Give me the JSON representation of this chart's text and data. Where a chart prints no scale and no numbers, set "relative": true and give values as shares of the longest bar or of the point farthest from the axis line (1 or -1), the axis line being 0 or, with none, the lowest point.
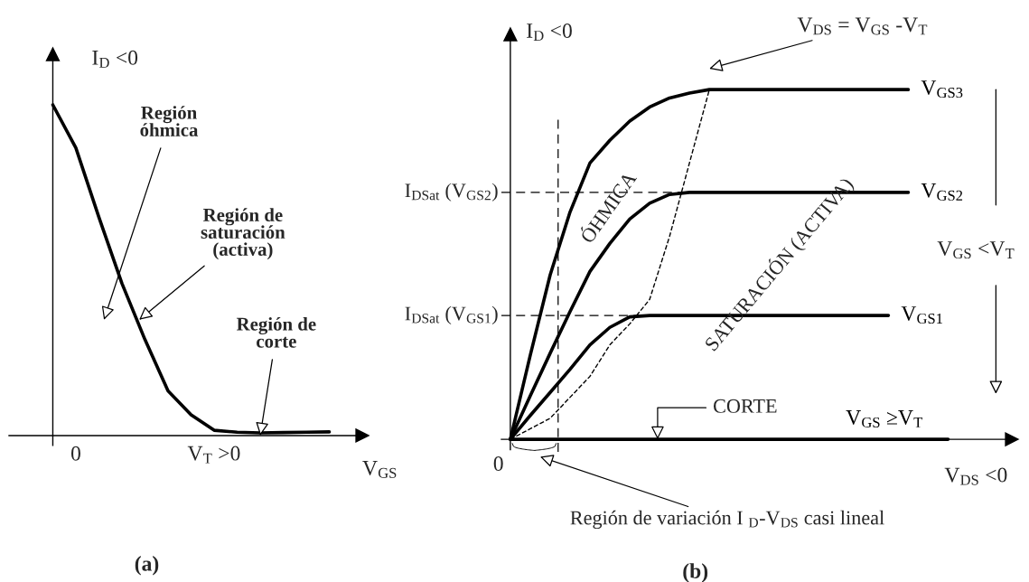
{
  "chart_data": [
    {
      "type": "line",
      "title": "(a)",
      "xlabel": "V$_{GS}$",
      "ylabel": "I$_{D}$ <0",
      "relative": true,
      "categories": [
        null,
        "0",
        null,
        null,
        null,
        null,
        null,
        "V$_{T}$ >0",
        null,
        null,
        null,
        null,
        null
      ],
      "series": [
        {
          "color": "#000000",
          "values": [
            1,
            0.87,
            0.66,
            0.46,
            0.29,
            0.135,
            0.063,
            0.016,
            0.01,
            0.008,
            0.009,
            0.01,
            0.011
          ]
        }
      ],
      "annotations": [
        "Región\nóhmica",
        "Región de\nsaturación\n(activa)",
        "Región de\ncorte"
      ]
    },
    {
      "type": "line",
      "title": "(b)",
      "xlabel": "V$_{DS}$ <0",
      "ylabel": "I$_{D}$ <0",
      "relative": true,
      "categories": [
        null,
        null,
        null,
        null,
        null,
        null,
        null,
        null,
        null,
        null,
        null,
        null,
        null,
        null,
        null,
        null,
        null,
        null,
        null,
        null,
        null,
        null,
        null
      ],
      "series": [
        {
          "name": "V$_{GS3}$",
          "color": "#000000",
          "values": [
            0,
            0.24,
            0.47,
            0.65,
            0.79,
            0.855,
            0.91,
            0.95,
            0.976,
            0.99,
            1,
            1,
            1,
            1,
            1,
            1,
            1,
            1,
            1,
            1,
            1,
            null,
            null
          ]
        },
        {
          "name": "V$_{GS2}$",
          "color": "#000000",
          "values": [
            0,
            0.124,
            0.246,
            0.365,
            0.48,
            0.56,
            0.63,
            0.675,
            0.7,
            0.706,
            0.706,
            0.706,
            0.706,
            0.706,
            0.706,
            0.706,
            0.706,
            0.706,
            0.706,
            0.706,
            0.706,
            null,
            null
          ]
        },
        {
          "name": "V$_{GS1}$",
          "color": "#000000",
          "values": [
            0,
            0.068,
            0.134,
            0.2,
            0.27,
            0.32,
            0.35,
            0.354,
            0.354,
            0.354,
            0.354,
            0.354,
            0.354,
            0.354,
            0.354,
            0.354,
            0.354,
            0.354,
            0.354,
            0.354,
            null,
            null,
            null
          ]
        },
        {
          "name": "V$_{GS}$ ≥V$_{T}$",
          "color": "#000000",
          "values": [
            0,
            0,
            0,
            0,
            0,
            0,
            0,
            0,
            0,
            0,
            0,
            0,
            0,
            0,
            0,
            0,
            0,
            0,
            0,
            0,
            0,
            0,
            0
          ]
        },
        {
          "color": "#000000",
          "line_style": "dashed",
          "values": [
            0,
            0.03,
            0.06,
            0.12,
            0.18,
            0.27,
            0.33,
            0.4,
            0.58,
            0.79,
            1,
            null,
            null,
            null,
            null,
            null,
            null,
            null,
            null,
            null,
            null,
            null,
            null
          ]
        }
      ],
      "ref_lines": [
        {
          "axis": "y",
          "value": 0.706,
          "label": "I$_{DSat}$ (V$_{GS2}$)",
          "line_style": "dashed"
        },
        {
          "axis": "y",
          "value": 0.354,
          "label": "I$_{DSat}$ (V$_{GS1}$)",
          "line_style": "dashed"
        }
      ],
      "annotations": [
        "V$_{DS}$ = V$_{GS}$ -V$_{T}$",
        "ÓHMICA",
        "SATURACIÓN (ACTIVA)",
        "CORTE",
        "V$_{GS}$ <V$_{T}$",
        "Región de variación I $_{D}$-V$_{DS}$ casi lineal",
        "0"
      ]
    }
  ]
}
